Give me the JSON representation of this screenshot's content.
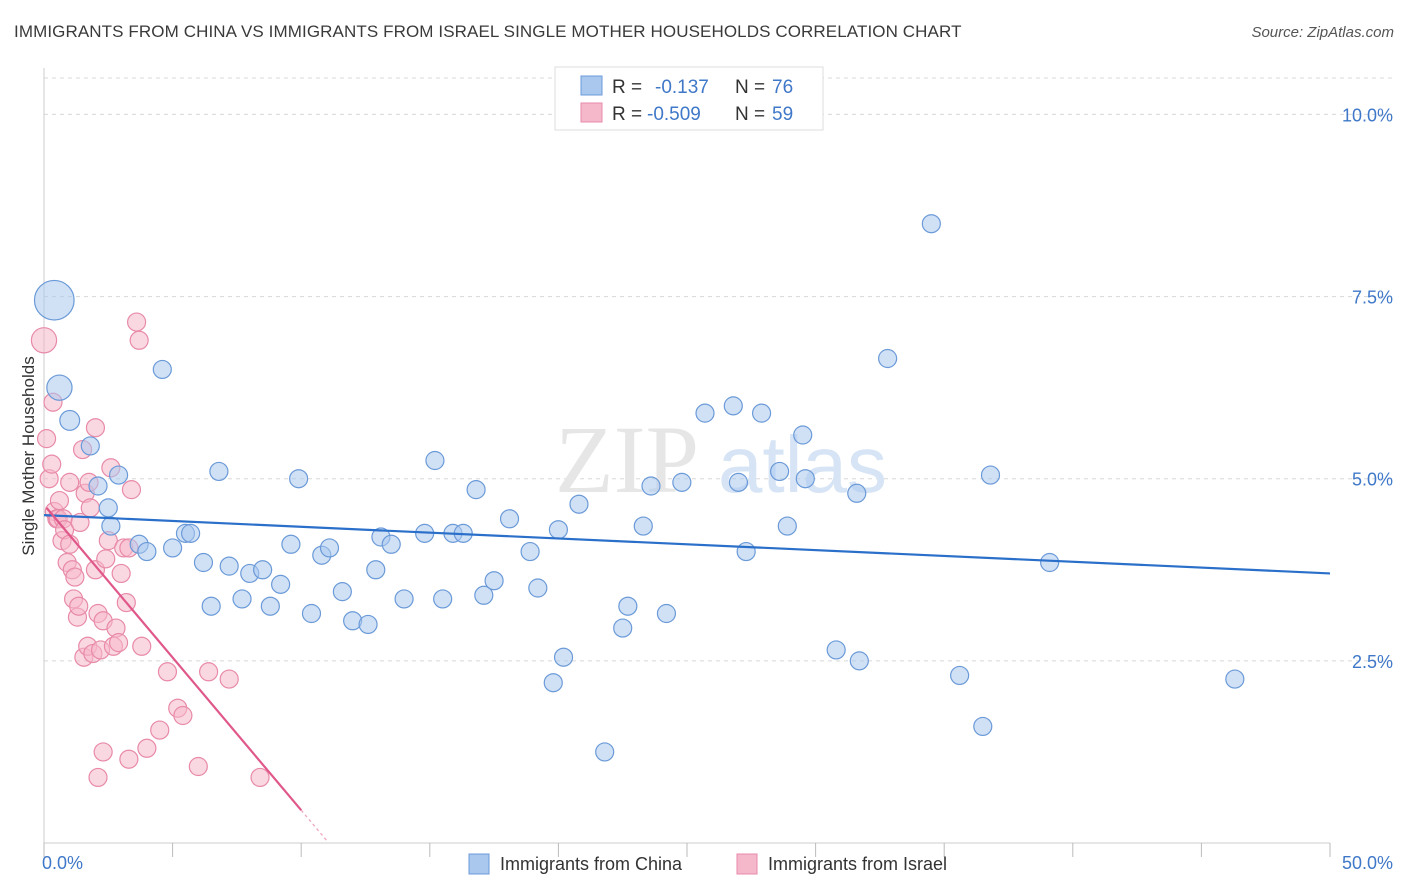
{
  "title": "IMMIGRANTS FROM CHINA VS IMMIGRANTS FROM ISRAEL SINGLE MOTHER HOUSEHOLDS CORRELATION CHART",
  "source": "Source: ZipAtlas.com",
  "watermark": {
    "zip": "ZIP",
    "atlas": "atlas"
  },
  "colors": {
    "china_fill": "#aac8ee",
    "china_stroke": "#6b9ad8",
    "china_line": "#2a6fc9",
    "israel_fill": "#f5b8cb",
    "israel_stroke": "#e88aa8",
    "israel_line": "#e0588a",
    "grid": "#d8d8d8",
    "tick": "#3f78c8"
  },
  "legend": {
    "china": {
      "r_label": "R =",
      "r_value": "-0.137",
      "n_label": "N =",
      "n_value": "76"
    },
    "israel": {
      "r_label": "R =",
      "r_value": "-0.509",
      "n_label": "N =",
      "n_value": "59"
    }
  },
  "chart_data": {
    "type": "scatter",
    "title": "IMMIGRANTS FROM CHINA VS IMMIGRANTS FROM ISRAEL SINGLE MOTHER HOUSEHOLDS CORRELATION CHART",
    "xlabel": "",
    "ylabel": "Single Mother Households",
    "xlim": [
      0,
      50
    ],
    "ylim": [
      0,
      10.5
    ],
    "x_tick_labels": [
      "0.0%",
      "50.0%"
    ],
    "y_ticks": [
      2.5,
      5.0,
      7.5,
      10.0
    ],
    "y_tick_labels": [
      "2.5%",
      "5.0%",
      "7.5%",
      "10.0%"
    ],
    "grid": "horizontal dashed",
    "legend_position": "top-center",
    "series": [
      {
        "name": "Immigrants from China",
        "trend": {
          "x": [
            0,
            50
          ],
          "y": [
            4.5,
            3.7
          ]
        },
        "points": [
          {
            "x": 0.4,
            "y": 7.45,
            "s": 2.2
          },
          {
            "x": 0.6,
            "y": 6.25,
            "s": 1.4
          },
          {
            "x": 1.0,
            "y": 5.8,
            "s": 1.1
          },
          {
            "x": 1.8,
            "y": 5.45,
            "s": 1
          },
          {
            "x": 2.1,
            "y": 4.9,
            "s": 1
          },
          {
            "x": 2.9,
            "y": 5.05,
            "s": 1
          },
          {
            "x": 2.5,
            "y": 4.6,
            "s": 1
          },
          {
            "x": 2.6,
            "y": 4.35,
            "s": 1
          },
          {
            "x": 3.7,
            "y": 4.1,
            "s": 1
          },
          {
            "x": 4.0,
            "y": 4.0,
            "s": 1
          },
          {
            "x": 5.0,
            "y": 4.05,
            "s": 1
          },
          {
            "x": 5.5,
            "y": 4.25,
            "s": 1
          },
          {
            "x": 5.7,
            "y": 4.25,
            "s": 1
          },
          {
            "x": 4.6,
            "y": 6.5,
            "s": 1
          },
          {
            "x": 6.8,
            "y": 5.1,
            "s": 1
          },
          {
            "x": 6.2,
            "y": 3.85,
            "s": 1
          },
          {
            "x": 7.2,
            "y": 3.8,
            "s": 1
          },
          {
            "x": 8.0,
            "y": 3.7,
            "s": 1
          },
          {
            "x": 8.5,
            "y": 3.75,
            "s": 1
          },
          {
            "x": 6.5,
            "y": 3.25,
            "s": 1
          },
          {
            "x": 7.7,
            "y": 3.35,
            "s": 1
          },
          {
            "x": 8.8,
            "y": 3.25,
            "s": 1
          },
          {
            "x": 9.2,
            "y": 3.55,
            "s": 1
          },
          {
            "x": 9.6,
            "y": 4.1,
            "s": 1
          },
          {
            "x": 9.9,
            "y": 5.0,
            "s": 1
          },
          {
            "x": 10.4,
            "y": 3.15,
            "s": 1
          },
          {
            "x": 10.8,
            "y": 3.95,
            "s": 1
          },
          {
            "x": 11.1,
            "y": 4.05,
            "s": 1
          },
          {
            "x": 11.6,
            "y": 3.45,
            "s": 1
          },
          {
            "x": 12.0,
            "y": 3.05,
            "s": 1
          },
          {
            "x": 12.6,
            "y": 3.0,
            "s": 1
          },
          {
            "x": 12.9,
            "y": 3.75,
            "s": 1
          },
          {
            "x": 13.1,
            "y": 4.2,
            "s": 1
          },
          {
            "x": 13.5,
            "y": 4.1,
            "s": 1
          },
          {
            "x": 14.0,
            "y": 3.35,
            "s": 1
          },
          {
            "x": 14.8,
            "y": 4.25,
            "s": 1
          },
          {
            "x": 15.2,
            "y": 5.25,
            "s": 1
          },
          {
            "x": 15.5,
            "y": 3.35,
            "s": 1
          },
          {
            "x": 15.9,
            "y": 4.25,
            "s": 1
          },
          {
            "x": 16.3,
            "y": 4.25,
            "s": 1
          },
          {
            "x": 16.8,
            "y": 4.85,
            "s": 1
          },
          {
            "x": 17.1,
            "y": 3.4,
            "s": 1
          },
          {
            "x": 17.5,
            "y": 3.6,
            "s": 1
          },
          {
            "x": 18.1,
            "y": 4.45,
            "s": 1
          },
          {
            "x": 18.9,
            "y": 4.0,
            "s": 1
          },
          {
            "x": 19.2,
            "y": 3.5,
            "s": 1
          },
          {
            "x": 19.8,
            "y": 2.2,
            "s": 1
          },
          {
            "x": 20.0,
            "y": 4.3,
            "s": 1
          },
          {
            "x": 20.2,
            "y": 2.55,
            "s": 1
          },
          {
            "x": 20.8,
            "y": 4.65,
            "s": 1
          },
          {
            "x": 21.8,
            "y": 1.25,
            "s": 1
          },
          {
            "x": 22.5,
            "y": 2.95,
            "s": 1
          },
          {
            "x": 22.7,
            "y": 3.25,
            "s": 1
          },
          {
            "x": 23.3,
            "y": 4.35,
            "s": 1
          },
          {
            "x": 23.6,
            "y": 4.9,
            "s": 1
          },
          {
            "x": 24.2,
            "y": 3.15,
            "s": 1
          },
          {
            "x": 24.8,
            "y": 4.95,
            "s": 1
          },
          {
            "x": 25.7,
            "y": 5.9,
            "s": 1
          },
          {
            "x": 26.8,
            "y": 6.0,
            "s": 1
          },
          {
            "x": 27.0,
            "y": 4.95,
            "s": 1
          },
          {
            "x": 27.3,
            "y": 4.0,
            "s": 1
          },
          {
            "x": 27.9,
            "y": 5.9,
            "s": 1
          },
          {
            "x": 28.6,
            "y": 5.1,
            "s": 1
          },
          {
            "x": 28.9,
            "y": 4.35,
            "s": 1
          },
          {
            "x": 29.5,
            "y": 5.6,
            "s": 1
          },
          {
            "x": 29.6,
            "y": 5.0,
            "s": 1
          },
          {
            "x": 30.8,
            "y": 2.65,
            "s": 1
          },
          {
            "x": 31.6,
            "y": 4.8,
            "s": 1
          },
          {
            "x": 31.7,
            "y": 2.5,
            "s": 1
          },
          {
            "x": 32.8,
            "y": 6.65,
            "s": 1
          },
          {
            "x": 34.5,
            "y": 8.5,
            "s": 1
          },
          {
            "x": 35.6,
            "y": 2.3,
            "s": 1
          },
          {
            "x": 36.5,
            "y": 1.6,
            "s": 1
          },
          {
            "x": 36.8,
            "y": 5.05,
            "s": 1
          },
          {
            "x": 39.1,
            "y": 3.85,
            "s": 1
          },
          {
            "x": 46.3,
            "y": 2.25,
            "s": 1
          }
        ]
      },
      {
        "name": "Immigrants from Israel",
        "trend": {
          "x": [
            0.1,
            10.0
          ],
          "y": [
            4.6,
            0.45
          ]
        },
        "points": [
          {
            "x": 0.0,
            "y": 6.9,
            "s": 1.4
          },
          {
            "x": 0.1,
            "y": 5.55,
            "s": 1
          },
          {
            "x": 0.2,
            "y": 5.0,
            "s": 1
          },
          {
            "x": 0.3,
            "y": 5.2,
            "s": 1
          },
          {
            "x": 0.35,
            "y": 6.05,
            "s": 1
          },
          {
            "x": 0.4,
            "y": 4.55,
            "s": 1
          },
          {
            "x": 0.5,
            "y": 4.45,
            "s": 1
          },
          {
            "x": 0.55,
            "y": 4.45,
            "s": 1
          },
          {
            "x": 0.6,
            "y": 4.7,
            "s": 1
          },
          {
            "x": 0.7,
            "y": 4.15,
            "s": 1
          },
          {
            "x": 0.75,
            "y": 4.45,
            "s": 1
          },
          {
            "x": 0.8,
            "y": 4.3,
            "s": 1
          },
          {
            "x": 0.9,
            "y": 3.85,
            "s": 1
          },
          {
            "x": 1.0,
            "y": 4.1,
            "s": 1
          },
          {
            "x": 1.0,
            "y": 4.95,
            "s": 1
          },
          {
            "x": 1.1,
            "y": 3.75,
            "s": 1
          },
          {
            "x": 1.15,
            "y": 3.35,
            "s": 1
          },
          {
            "x": 1.2,
            "y": 3.65,
            "s": 1
          },
          {
            "x": 1.3,
            "y": 3.1,
            "s": 1
          },
          {
            "x": 1.35,
            "y": 3.25,
            "s": 1
          },
          {
            "x": 1.4,
            "y": 4.4,
            "s": 1
          },
          {
            "x": 1.5,
            "y": 5.4,
            "s": 1
          },
          {
            "x": 1.55,
            "y": 2.55,
            "s": 1
          },
          {
            "x": 1.6,
            "y": 4.8,
            "s": 1
          },
          {
            "x": 1.7,
            "y": 2.7,
            "s": 1
          },
          {
            "x": 1.75,
            "y": 4.95,
            "s": 1
          },
          {
            "x": 1.8,
            "y": 4.6,
            "s": 1
          },
          {
            "x": 1.9,
            "y": 2.6,
            "s": 1
          },
          {
            "x": 2.0,
            "y": 5.7,
            "s": 1
          },
          {
            "x": 2.0,
            "y": 3.75,
            "s": 1
          },
          {
            "x": 2.1,
            "y": 3.15,
            "s": 1
          },
          {
            "x": 2.2,
            "y": 2.65,
            "s": 1
          },
          {
            "x": 2.3,
            "y": 3.05,
            "s": 1
          },
          {
            "x": 2.4,
            "y": 3.9,
            "s": 1
          },
          {
            "x": 2.5,
            "y": 4.15,
            "s": 1
          },
          {
            "x": 2.6,
            "y": 5.15,
            "s": 1
          },
          {
            "x": 2.7,
            "y": 2.7,
            "s": 1
          },
          {
            "x": 2.8,
            "y": 2.95,
            "s": 1
          },
          {
            "x": 2.9,
            "y": 2.75,
            "s": 1
          },
          {
            "x": 3.0,
            "y": 3.7,
            "s": 1
          },
          {
            "x": 3.1,
            "y": 4.05,
            "s": 1
          },
          {
            "x": 3.2,
            "y": 3.3,
            "s": 1
          },
          {
            "x": 3.3,
            "y": 4.05,
            "s": 1
          },
          {
            "x": 3.4,
            "y": 4.85,
            "s": 1
          },
          {
            "x": 3.6,
            "y": 7.15,
            "s": 1
          },
          {
            "x": 3.7,
            "y": 6.9,
            "s": 1
          },
          {
            "x": 3.8,
            "y": 2.7,
            "s": 1
          },
          {
            "x": 4.0,
            "y": 1.3,
            "s": 1
          },
          {
            "x": 4.5,
            "y": 1.55,
            "s": 1
          },
          {
            "x": 4.8,
            "y": 2.35,
            "s": 1
          },
          {
            "x": 5.2,
            "y": 1.85,
            "s": 1
          },
          {
            "x": 5.4,
            "y": 1.75,
            "s": 1
          },
          {
            "x": 6.0,
            "y": 1.05,
            "s": 1
          },
          {
            "x": 6.4,
            "y": 2.35,
            "s": 1
          },
          {
            "x": 7.2,
            "y": 2.25,
            "s": 1
          },
          {
            "x": 8.4,
            "y": 0.9,
            "s": 1
          },
          {
            "x": 2.3,
            "y": 1.25,
            "s": 1
          },
          {
            "x": 3.3,
            "y": 1.15,
            "s": 1
          },
          {
            "x": 2.1,
            "y": 0.9,
            "s": 1
          }
        ]
      }
    ]
  },
  "bottom_legend": {
    "china_label": "Immigrants from China",
    "israel_label": "Immigrants from Israel"
  }
}
